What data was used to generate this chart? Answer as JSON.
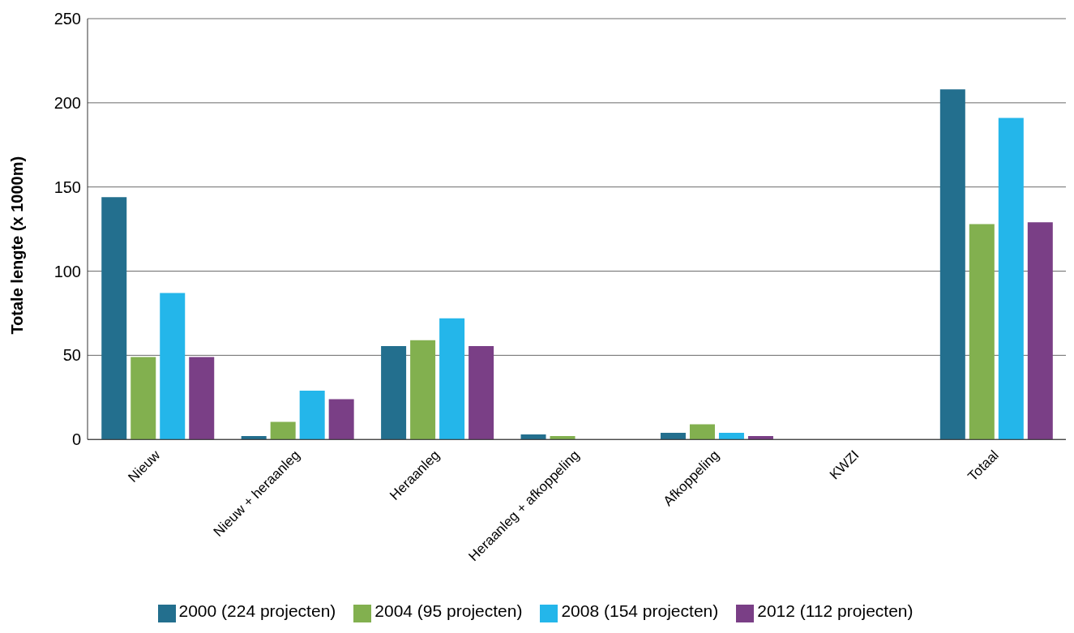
{
  "chart_data": {
    "type": "bar",
    "ylabel": "Totale lengte (x 1000m)",
    "categories": [
      "Nieuw",
      "Nieuw + heraanleg",
      "Heraanleg",
      "Heraanleg + afkoppeling",
      "Afkoppeling",
      "KWZI",
      "Totaal"
    ],
    "series": [
      {
        "name": "2000 (224 projecten)",
        "color": "#236f8e",
        "values": [
          144,
          2,
          55.5,
          3,
          4,
          null,
          208
        ]
      },
      {
        "name": "2004 (95 projecten)",
        "color": "#82b04f",
        "values": [
          49,
          10.5,
          59,
          2,
          9,
          null,
          128
        ]
      },
      {
        "name": "2008 (154 projecten)",
        "color": "#24b6ea",
        "values": [
          87,
          29,
          72,
          null,
          4,
          null,
          191
        ]
      },
      {
        "name": "2012 (112 projecten)",
        "color": "#7a3f86",
        "values": [
          49,
          24,
          55.5,
          null,
          2,
          null,
          129
        ]
      }
    ],
    "ylim": [
      0,
      250
    ],
    "yticks": [
      0,
      50,
      100,
      150,
      200,
      250
    ],
    "grid": "y",
    "legend": "bottom"
  }
}
